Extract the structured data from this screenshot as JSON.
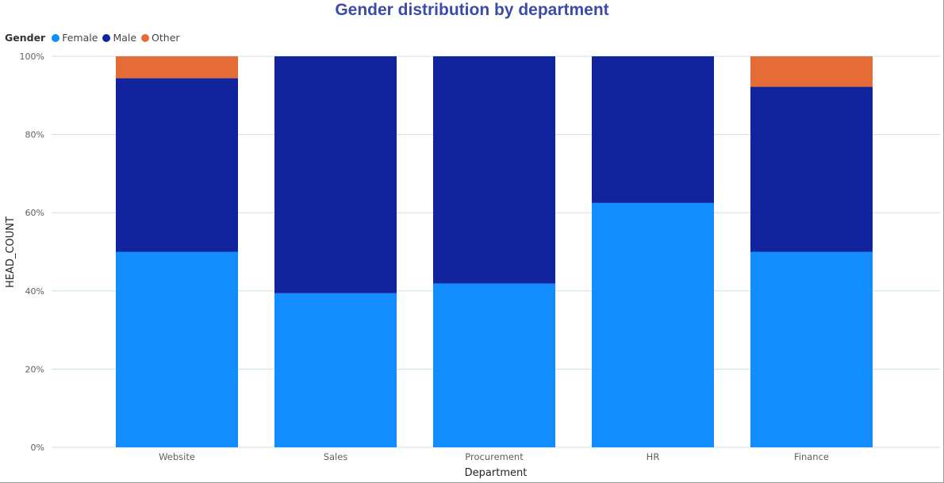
{
  "chart_data": {
    "type": "bar",
    "stacked": true,
    "normalized": true,
    "title": "Gender distribution by department",
    "xlabel": "Department",
    "ylabel": "HEAD_COUNT",
    "categories": [
      "Website",
      "Sales",
      "Procurement",
      "HR",
      "Finance"
    ],
    "series": [
      {
        "name": "Female",
        "color": "#118DFF",
        "values": [
          50,
          39.4,
          41.9,
          62.5,
          50
        ]
      },
      {
        "name": "Male",
        "color": "#12239E",
        "values": [
          44.4,
          60.6,
          58.1,
          37.5,
          42.2
        ]
      },
      {
        "name": "Other",
        "color": "#E66C37",
        "values": [
          5.6,
          0,
          0,
          0,
          7.8
        ]
      }
    ],
    "ylim": [
      0,
      100
    ],
    "yticks": [
      0,
      20,
      40,
      60,
      80,
      100
    ],
    "ytick_labels": [
      "0%",
      "20%",
      "40%",
      "60%",
      "80%",
      "100%"
    ],
    "grid": true,
    "legend": {
      "title": "Gender",
      "position": "top-left"
    },
    "title_color": "#3B4BA6",
    "grid_color": "#C8E1EE"
  }
}
